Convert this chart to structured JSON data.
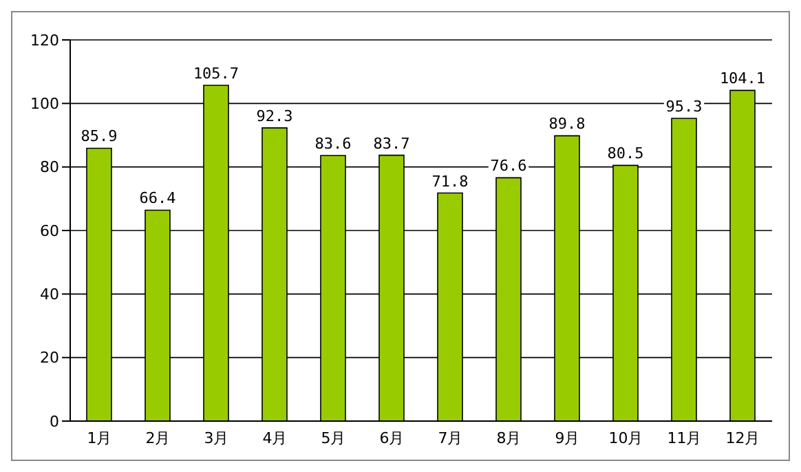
{
  "chart_data": {
    "type": "bar",
    "categories": [
      "1月",
      "2月",
      "3月",
      "4月",
      "5月",
      "6月",
      "7月",
      "8月",
      "9月",
      "10月",
      "11月",
      "12月"
    ],
    "values": [
      85.9,
      66.4,
      105.7,
      92.3,
      83.6,
      83.7,
      71.8,
      76.6,
      89.8,
      80.5,
      95.3,
      104.1
    ],
    "color": "#99cc00",
    "ylim": [
      0,
      120
    ],
    "yticks": [
      0,
      20,
      40,
      60,
      80,
      100,
      120
    ],
    "grid": "y",
    "data_labels": true
  }
}
